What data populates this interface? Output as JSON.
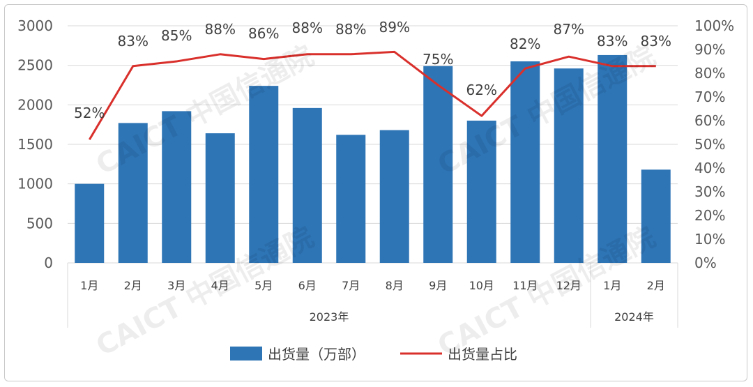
{
  "chart_data": {
    "type": "bar+line",
    "categories": [
      "1月",
      "2月",
      "3月",
      "4月",
      "5月",
      "6月",
      "7月",
      "8月",
      "9月",
      "10月",
      "11月",
      "12月",
      "1月",
      "2月"
    ],
    "groups": [
      {
        "label": "2023年",
        "from": 0,
        "to": 11
      },
      {
        "label": "2024年",
        "from": 12,
        "to": 13
      }
    ],
    "series": [
      {
        "name": "出货量（万部）",
        "type": "bar",
        "axis": "left",
        "color": "#2e75b6",
        "values": [
          1000,
          1770,
          1920,
          1640,
          2240,
          1960,
          1620,
          1680,
          2490,
          1800,
          2550,
          2460,
          2630,
          1180
        ]
      },
      {
        "name": "出货量占比",
        "type": "line",
        "axis": "right",
        "color": "#d9302c",
        "values": [
          52,
          83,
          85,
          88,
          86,
          88,
          88,
          89,
          75,
          62,
          82,
          87,
          83,
          83
        ],
        "labels": [
          "52%",
          "83%",
          "85%",
          "88%",
          "86%",
          "88%",
          "88%",
          "89%",
          "75%",
          "62%",
          "82%",
          "87%",
          "83%",
          "83%"
        ]
      }
    ],
    "y_left": {
      "min": 0,
      "max": 3000,
      "ticks": [
        "0",
        "500",
        "1000",
        "1500",
        "2000",
        "2500",
        "3000"
      ]
    },
    "y_right": {
      "min": 0,
      "max": 100,
      "ticks": [
        "0%",
        "10%",
        "20%",
        "30%",
        "40%",
        "50%",
        "60%",
        "70%",
        "80%",
        "90%",
        "100%"
      ]
    },
    "grid": true,
    "legend_position": "bottom",
    "watermark": "CAICT 中国信通院"
  }
}
